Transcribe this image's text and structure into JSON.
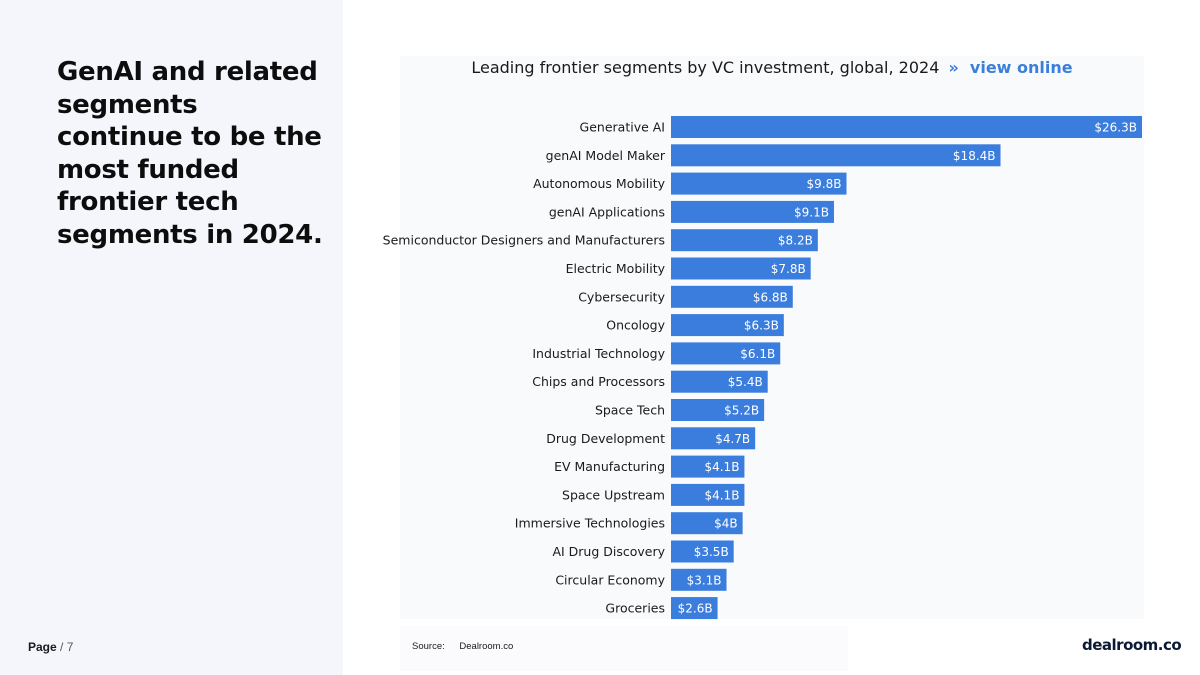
{
  "headline": "GenAI and related segments continue to be the most funded frontier tech segments in 2024.",
  "page": {
    "label": "Page",
    "total": "/ 7"
  },
  "chart_title": {
    "text": "Leading frontier segments by VC investment, global, 2024",
    "separator": "»",
    "link": "view online"
  },
  "source": {
    "label": "Source:",
    "value": "Dealroom.co"
  },
  "logo": "dealroom.co",
  "colors": {
    "bar": "#3b7ddd",
    "link": "#3a7fd9",
    "panel": "#f4f6fb"
  },
  "chart_data": {
    "type": "bar",
    "orientation": "horizontal",
    "title": "Leading frontier segments by VC investment, global, 2024",
    "categories": [
      "Generative AI",
      "genAI Model Maker",
      "Autonomous Mobility",
      "genAI Applications",
      "Semiconductor Designers and Manufacturers",
      "Electric Mobility",
      "Cybersecurity",
      "Oncology",
      "Industrial Technology",
      "Chips and Processors",
      "Space Tech",
      "Drug Development",
      "EV Manufacturing",
      "Space Upstream",
      "Immersive Technologies",
      "AI Drug Discovery",
      "Circular Economy",
      "Groceries"
    ],
    "values": [
      26.3,
      18.4,
      9.8,
      9.1,
      8.2,
      7.8,
      6.8,
      6.3,
      6.1,
      5.4,
      5.2,
      4.7,
      4.1,
      4.1,
      4.0,
      3.5,
      3.1,
      2.6
    ],
    "value_labels": [
      "$26.3B",
      "$18.4B",
      "$9.8B",
      "$9.1B",
      "$8.2B",
      "$7.8B",
      "$6.8B",
      "$6.3B",
      "$6.1B",
      "$5.4B",
      "$5.2B",
      "$4.7B",
      "$4.1B",
      "$4.1B",
      "$4B",
      "$3.5B",
      "$3.1B",
      "$2.6B"
    ],
    "unit": "USD billions",
    "grid": false,
    "legend": "none"
  }
}
